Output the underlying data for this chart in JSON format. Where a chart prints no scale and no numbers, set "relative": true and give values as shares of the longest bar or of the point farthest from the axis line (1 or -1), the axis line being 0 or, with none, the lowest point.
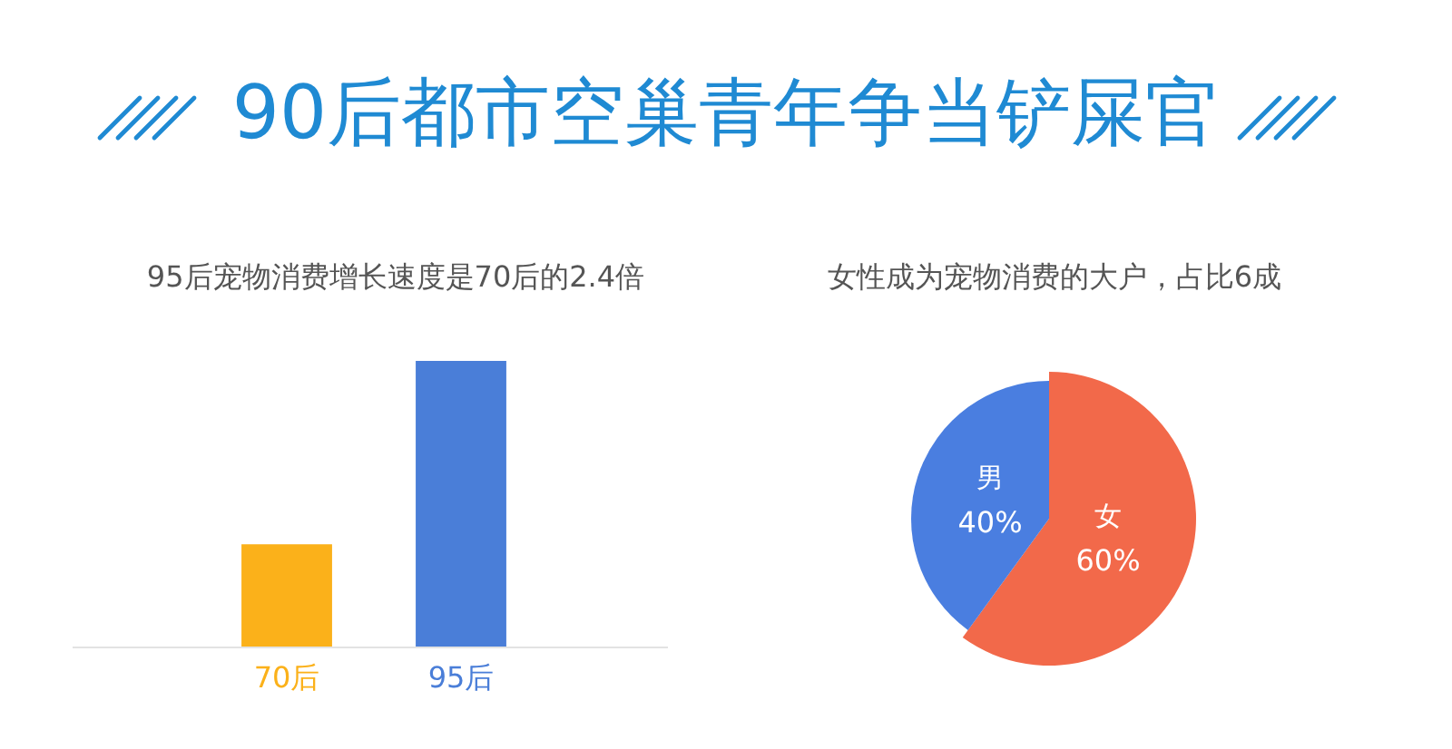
{
  "chart_data": [
    {
      "type": "other",
      "title": "90后都市空巢青年争当铲屎官"
    },
    {
      "type": "bar",
      "title": "95后宠物消费增长速度是70后的2.4倍",
      "categories": [
        "70后",
        "95后"
      ],
      "values": [
        0.36,
        1
      ],
      "colors": [
        "#fbb11a",
        "#4a7ed8"
      ],
      "relative": true
    },
    {
      "type": "pie",
      "title": "女性成为宠物消费的大户，占比6成",
      "categories": [
        "女",
        "男"
      ],
      "values": [
        60,
        40
      ],
      "colors": [
        "#f2694a",
        "#4a7ee0"
      ],
      "value_labels": [
        "60%",
        "40%"
      ]
    }
  ]
}
